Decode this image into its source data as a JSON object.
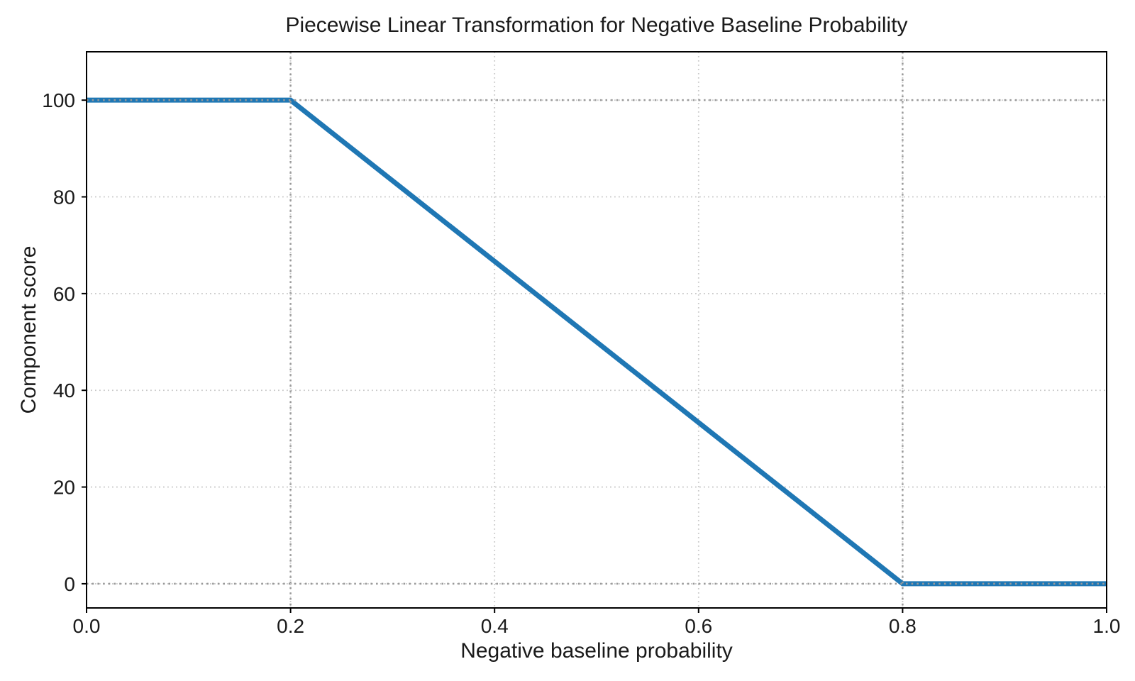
{
  "figure": {
    "background": "#ffffff",
    "text_color": "#1a1a1a",
    "spine_color": "#000000"
  },
  "chart_data": {
    "type": "line",
    "title": "Piecewise Linear Transformation for Negative Baseline Probability",
    "xlabel": "Negative baseline probability",
    "ylabel": "Component score",
    "xlim": [
      0.0,
      1.0
    ],
    "ylim": [
      -5,
      110
    ],
    "x_ticks": [
      0.0,
      0.2,
      0.4,
      0.6,
      0.8,
      1.0
    ],
    "x_tick_labels": [
      "0.0",
      "0.2",
      "0.4",
      "0.6",
      "0.8",
      "1.0"
    ],
    "y_ticks": [
      0,
      20,
      40,
      60,
      80,
      100
    ],
    "y_tick_labels": [
      "0",
      "20",
      "40",
      "60",
      "80",
      "100"
    ],
    "grid": {
      "visible": true,
      "line_style": "dotted",
      "color": "#c9c9c9",
      "width": 1.8,
      "dash": [
        1.8,
        4.2
      ]
    },
    "series": [
      {
        "name": "component score",
        "color": "#1f77b4",
        "line_width": 7,
        "points": [
          [
            0.0,
            100
          ],
          [
            0.2,
            100
          ],
          [
            0.8,
            0
          ],
          [
            1.0,
            0
          ]
        ]
      }
    ],
    "reference_lines": {
      "line_style": "dotted",
      "color": "#999999",
      "width": 2.5,
      "dash": [
        2.5,
        5.2
      ],
      "vertical_x": [
        0.2,
        0.8
      ],
      "horizontal_y": [
        0,
        100
      ]
    },
    "legend": {
      "visible": false
    }
  }
}
